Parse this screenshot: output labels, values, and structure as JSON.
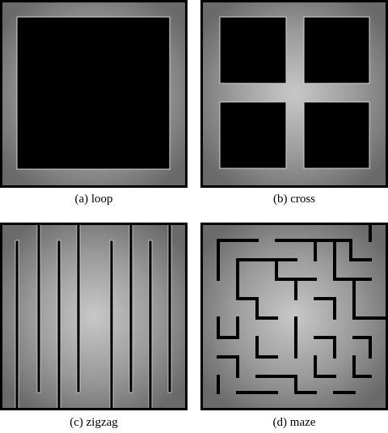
{
  "panels": [
    {
      "id": "loop",
      "caption": "(a)  loop"
    },
    {
      "id": "cross",
      "caption": "(b)  cross"
    },
    {
      "id": "zigzag",
      "caption": "(c)  zigzag"
    },
    {
      "id": "maze",
      "caption": "(d)  maze"
    }
  ],
  "colors": {
    "background": "#ffffff",
    "border": "#000000",
    "corridor_center": "#bdbdbd",
    "corridor_edge": "#6e6e6e",
    "obstacle": "#000000"
  }
}
